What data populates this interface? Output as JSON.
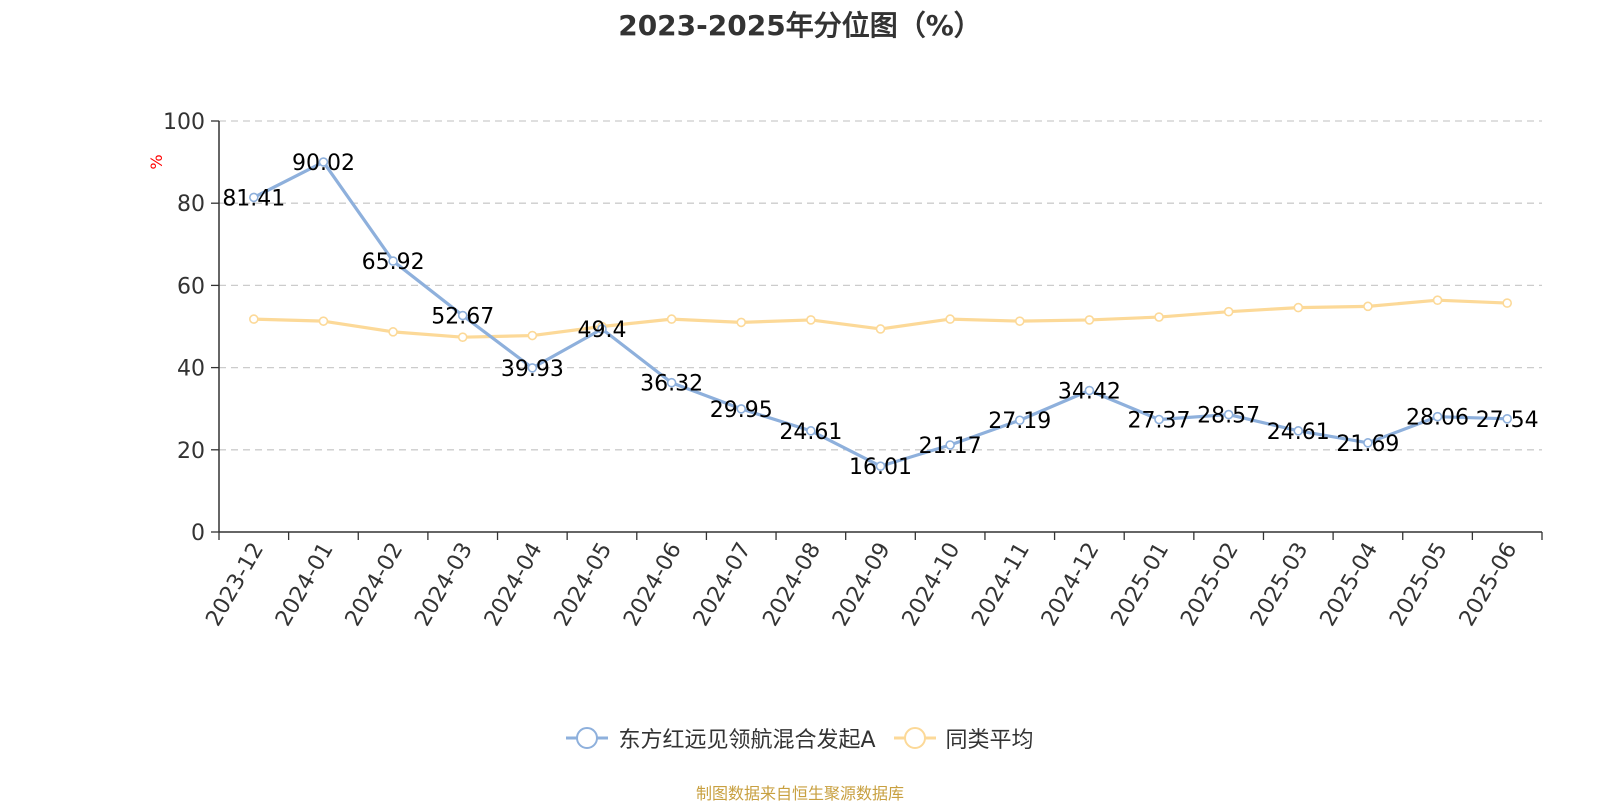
{
  "chart_data": {
    "type": "line",
    "title": "2023-2025年分位图（%）",
    "ylabel": "%",
    "xlabel": "",
    "ylim": [
      0,
      100
    ],
    "yticks": [
      0,
      20,
      40,
      60,
      80,
      100
    ],
    "grid": true,
    "legend_position": "bottom",
    "categories": [
      "2023-12",
      "2024-01",
      "2024-02",
      "2024-03",
      "2024-04",
      "2024-05",
      "2024-06",
      "2024-07",
      "2024-08",
      "2024-09",
      "2024-10",
      "2024-11",
      "2024-12",
      "2025-01",
      "2025-02",
      "2025-03",
      "2025-04",
      "2025-05",
      "2025-06"
    ],
    "series": [
      {
        "name": "东方红远见领航混合发起A",
        "color": "#8eb0dc",
        "values": [
          81.41,
          90.02,
          65.92,
          52.67,
          39.93,
          49.4,
          36.32,
          29.95,
          24.61,
          16.01,
          21.17,
          27.19,
          34.42,
          27.37,
          28.57,
          24.61,
          21.69,
          28.06,
          27.54
        ],
        "labels": [
          "81.41",
          "90.02",
          "65.92",
          "52.67",
          "39.93",
          "49.4",
          "36.32",
          "29.95",
          "24.61",
          "16.01",
          "21.17",
          "27.19",
          "34.42",
          "27.37",
          "28.57",
          "24.61",
          "21.69",
          "28.06",
          "27.54"
        ],
        "show_labels": true
      },
      {
        "name": "同类平均",
        "color": "#fcd998",
        "values": [
          51.8,
          51.3,
          48.7,
          47.4,
          47.8,
          50.0,
          51.8,
          51.0,
          51.6,
          49.4,
          51.8,
          51.3,
          51.6,
          52.3,
          53.6,
          54.6,
          54.9,
          56.4,
          55.7
        ],
        "show_labels": false
      }
    ]
  },
  "source_note": "制图数据来自恒生聚源数据库",
  "colors": {
    "title": "#333333",
    "axis": "#333333",
    "grid": "#cccccc",
    "ylabel": "#ff0000",
    "source_note": "#c8a040"
  }
}
